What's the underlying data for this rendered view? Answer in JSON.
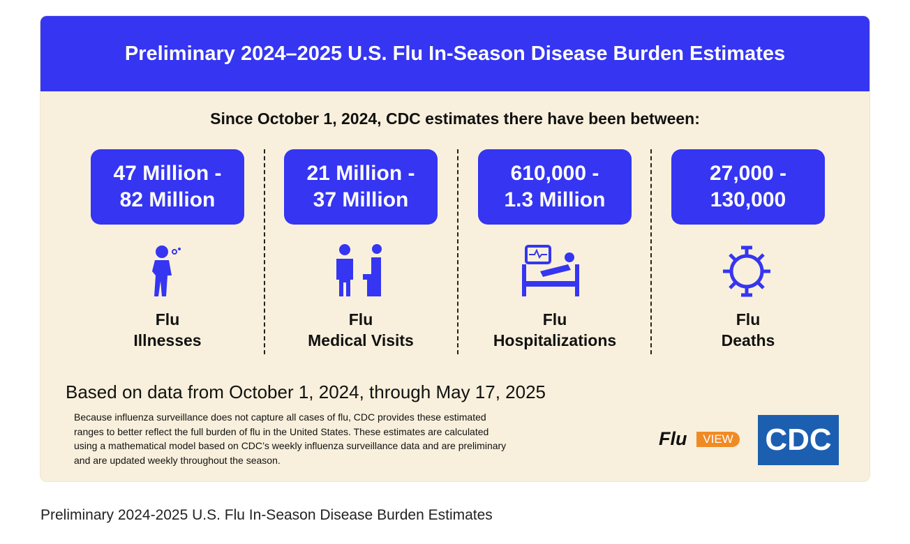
{
  "header": {
    "title": "Preliminary 2024–2025 U.S. Flu In-Season Disease Burden Estimates"
  },
  "intro": "Since October 1, 2024, CDC estimates there have been between:",
  "cards": [
    {
      "range": [
        "47 Million -",
        "82 Million"
      ],
      "label": [
        "Flu",
        "Illnesses"
      ]
    },
    {
      "range": [
        "21 Million -",
        "37 Million"
      ],
      "label": [
        "Flu",
        "Medical Visits"
      ]
    },
    {
      "range": [
        "610,000 -",
        "1.3 Million"
      ],
      "label": [
        "Flu",
        "Hospitalizations"
      ]
    },
    {
      "range": [
        "27,000 -",
        "130,000"
      ],
      "label": [
        "Flu",
        "Deaths"
      ]
    }
  ],
  "footer": {
    "period": "Based on data from October 1, 2024, through May 17, 2025",
    "note": [
      "Because influenza surveillance does not capture all cases of flu, CDC provides these estimated",
      "ranges to better reflect the full burden of flu in the United States. These estimates are calculated",
      "using a mathematical model based on CDC’s weekly influenza surveillance data and are preliminary",
      "and are updated weekly throughout the season."
    ],
    "logos": {
      "fluview": [
        "Flu",
        "VIEW"
      ],
      "cdc": "CDC"
    }
  },
  "caption": "Preliminary 2024-2025 U.S. Flu In-Season Disease Burden Estimates"
}
